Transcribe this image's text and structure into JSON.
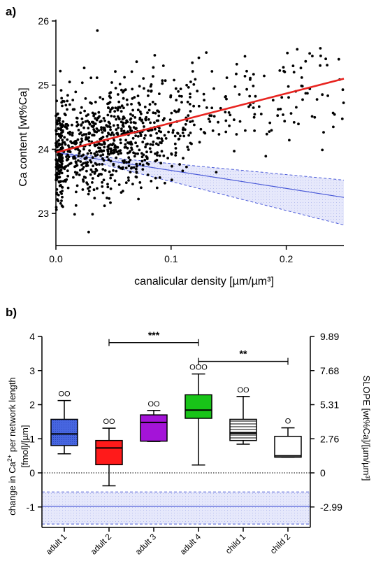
{
  "chart_data": [
    {
      "panel": "a)",
      "type": "scatter",
      "xlabel": "canalicular density [µm/µm³]",
      "ylabel": "Ca content [wt%Ca]",
      "xlim": [
        0,
        0.25
      ],
      "ylim": [
        22.5,
        26
      ],
      "xticks": [
        0.0,
        0.1,
        0.2
      ],
      "xtick_labels": [
        "0.0",
        "0.1",
        "0.2"
      ],
      "yticks": [
        23,
        24,
        25,
        26
      ],
      "ytick_labels": [
        "23",
        "24",
        "25",
        "26"
      ],
      "points_summary": {
        "n_approx": 1000,
        "x_range": [
          0,
          0.25
        ],
        "y_range": [
          22.5,
          25.85
        ]
      },
      "fit_line": {
        "color": "#e8231f",
        "x": [
          0,
          0.25
        ],
        "y": [
          23.95,
          25.1
        ]
      },
      "reference_band": {
        "color": "#4a5ad8",
        "x": [
          0,
          0.25
        ],
        "center": [
          23.95,
          23.25
        ],
        "lower": [
          23.95,
          22.82
        ],
        "upper": [
          23.95,
          23.52
        ]
      }
    },
    {
      "panel": "b)",
      "type": "box",
      "ylabel_line1": "change in Ca",
      "ylabel_sup": "2+",
      "ylabel_line1_rest": " per network length",
      "ylabel_line2": "[fmol]/[µm]",
      "y2label": "SLOPE [wt%Ca]/[µm/µm³]",
      "ylim": [
        -1.6,
        4
      ],
      "yticks": [
        -1,
        0,
        1,
        2,
        3,
        4
      ],
      "ytick_labels": [
        "-1",
        "0",
        "1",
        "2",
        "3",
        "4"
      ],
      "y2ticks": [
        -2.99,
        0,
        2.76,
        5.31,
        7.68,
        9.89
      ],
      "y2tick_labels": [
        "-2.99",
        "0",
        "2.76",
        "5.31",
        "7.68",
        "9.89"
      ],
      "categories": [
        "adult 1",
        "adult 2",
        "adult 3",
        "adult 4",
        "child 1",
        "child 2"
      ],
      "boxes": [
        {
          "color": "#3f5bd6",
          "min": 0.56,
          "q1": 0.8,
          "median": 1.14,
          "q3": 1.57,
          "max": 2.12,
          "pattern": "dots",
          "outliers": "OO"
        },
        {
          "color": "#ff1a1a",
          "min": -0.38,
          "q1": 0.24,
          "median": 0.73,
          "q3": 0.95,
          "max": 1.31,
          "pattern": "solid",
          "outliers": "OO"
        },
        {
          "color": "#a414d8",
          "min": 0.92,
          "q1": 0.93,
          "median": 1.48,
          "q3": 1.7,
          "max": 1.83,
          "pattern": "solid",
          "outliers": "OO"
        },
        {
          "color": "#18c418",
          "min": 0.23,
          "q1": 1.6,
          "median": 1.84,
          "q3": 2.29,
          "max": 2.9,
          "pattern": "solid",
          "outliers": "OOO"
        },
        {
          "color": "#ffffff",
          "min": 0.84,
          "q1": 0.95,
          "median": 1.16,
          "q3": 1.57,
          "max": 2.24,
          "pattern": "hlines",
          "outliers": "OO"
        },
        {
          "color": "#ffffff",
          "min": 0.46,
          "q1": 0.46,
          "median": 0.5,
          "q3": 1.07,
          "max": 1.32,
          "pattern": "solid",
          "outliers": "O"
        }
      ],
      "significance": [
        {
          "from": "adult 2",
          "to": "adult 4",
          "label": "***",
          "y": 3.82
        },
        {
          "from": "adult 4",
          "to": "child 2",
          "label": "**",
          "y": 3.27
        }
      ],
      "zero_line": {
        "y": 0,
        "style": "dotted"
      },
      "reference_band": {
        "color": "#4a5ad8",
        "center": -0.98,
        "lower": -1.5,
        "upper": -0.56
      }
    }
  ]
}
